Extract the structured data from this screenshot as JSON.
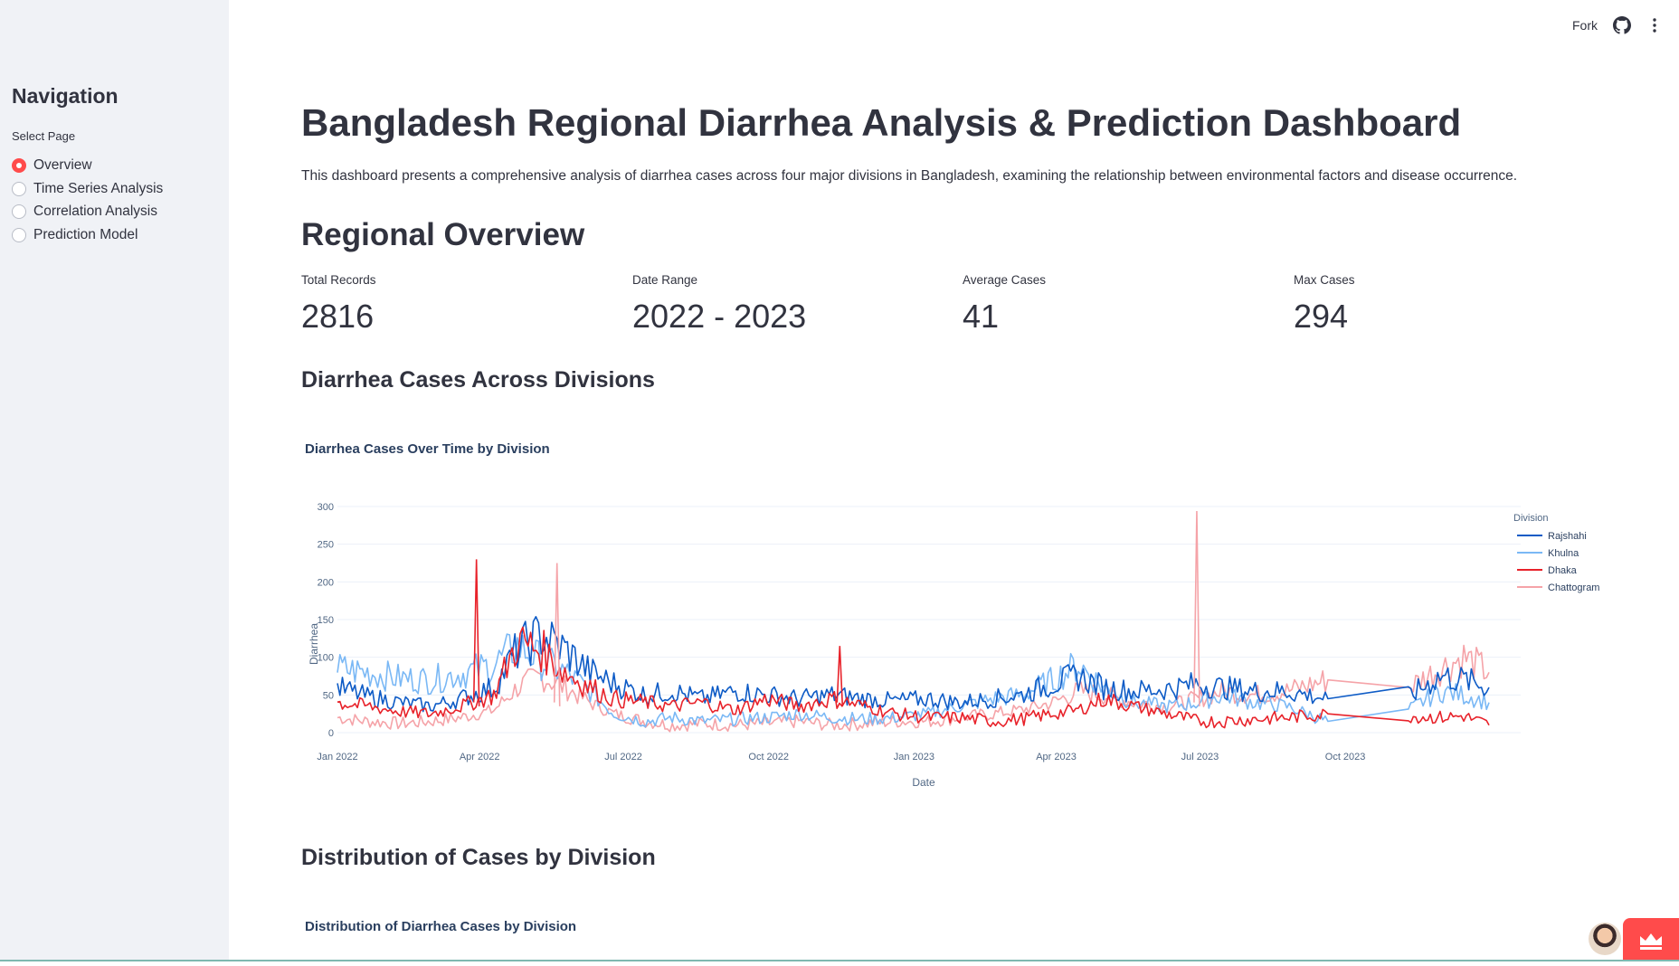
{
  "sidebar": {
    "title": "Navigation",
    "select_label": "Select Page",
    "items": [
      {
        "label": "Overview",
        "selected": true
      },
      {
        "label": "Time Series Analysis",
        "selected": false
      },
      {
        "label": "Correlation Analysis",
        "selected": false
      },
      {
        "label": "Prediction Model",
        "selected": false
      }
    ]
  },
  "topbar": {
    "fork_label": "Fork",
    "github_icon": "github-icon",
    "menu_icon": "kebab-menu-icon"
  },
  "main": {
    "title": "Bangladesh Regional Diarrhea Analysis & Prediction Dashboard",
    "description": "This dashboard presents a comprehensive analysis of diarrhea cases across four major divisions in Bangladesh, examining the relationship between environmental factors and disease occurrence.",
    "regional_overview": "Regional Overview",
    "metrics": [
      {
        "label": "Total Records",
        "value": "2816"
      },
      {
        "label": "Date Range",
        "value": "2022 - 2023"
      },
      {
        "label": "Average Cases",
        "value": "41"
      },
      {
        "label": "Max Cases",
        "value": "294"
      }
    ],
    "section_cases": "Diarrhea Cases Across Divisions",
    "section_distribution": "Distribution of Cases by Division",
    "distribution_chart_title": "Distribution of Diarrhea Cases by Division"
  },
  "chart_data": {
    "type": "line",
    "title": "Diarrhea Cases Over Time by Division",
    "xlabel": "Date",
    "ylabel": "Diarrhea",
    "ylim": [
      0,
      300
    ],
    "yticks": [
      0,
      50,
      100,
      150,
      200,
      250,
      300
    ],
    "xlim": [
      "2022-01-01",
      "2023-12-31"
    ],
    "xticks": [
      {
        "date": "2022-01-01",
        "label": "Jan 2022"
      },
      {
        "date": "2022-04-01",
        "label": "Apr 2022"
      },
      {
        "date": "2022-07-01",
        "label": "Jul 2022"
      },
      {
        "date": "2022-10-01",
        "label": "Oct 2022"
      },
      {
        "date": "2023-01-01",
        "label": "Jan 2023"
      },
      {
        "date": "2023-04-01",
        "label": "Apr 2023"
      },
      {
        "date": "2023-07-01",
        "label": "Jul 2023"
      },
      {
        "date": "2023-10-01",
        "label": "Oct 2023"
      }
    ],
    "grid": true,
    "legend_title": "Division",
    "legend_position": "right",
    "series": [
      {
        "name": "Rajshahi",
        "color": "#0d5bc6",
        "points": [
          [
            "2022-01-01",
            60
          ],
          [
            "2022-01-20",
            48
          ],
          [
            "2022-02-10",
            40
          ],
          [
            "2022-03-01",
            35
          ],
          [
            "2022-03-20",
            45
          ],
          [
            "2022-04-10",
            60
          ],
          [
            "2022-04-25",
            110
          ],
          [
            "2022-05-10",
            130
          ],
          [
            "2022-05-25",
            110
          ],
          [
            "2022-06-10",
            80
          ],
          [
            "2022-06-25",
            65
          ],
          [
            "2022-07-15",
            50
          ],
          [
            "2022-08-01",
            55
          ],
          [
            "2022-08-20",
            45
          ],
          [
            "2022-09-10",
            55
          ],
          [
            "2022-09-30",
            50
          ],
          [
            "2022-10-20",
            45
          ],
          [
            "2022-11-10",
            50
          ],
          [
            "2022-12-01",
            45
          ],
          [
            "2022-12-20",
            42
          ],
          [
            "2023-01-10",
            45
          ],
          [
            "2023-01-30",
            40
          ],
          [
            "2023-02-20",
            45
          ],
          [
            "2023-03-10",
            50
          ],
          [
            "2023-03-30",
            65
          ],
          [
            "2023-04-15",
            75
          ],
          [
            "2023-05-01",
            60
          ],
          [
            "2023-05-20",
            55
          ],
          [
            "2023-06-10",
            58
          ],
          [
            "2023-06-30",
            65
          ],
          [
            "2023-07-15",
            60
          ],
          [
            "2023-08-05",
            55
          ],
          [
            "2023-08-25",
            55
          ],
          [
            "2023-09-20",
            45
          ],
          [
            "2023-11-10",
            48
          ],
          [
            "2023-11-30",
            75
          ],
          [
            "2023-12-15",
            70
          ],
          [
            "2023-12-31",
            60
          ]
        ]
      },
      {
        "name": "Khulna",
        "color": "#7ab8f5",
        "points": [
          [
            "2022-01-01",
            85
          ],
          [
            "2022-01-20",
            80
          ],
          [
            "2022-02-10",
            72
          ],
          [
            "2022-03-01",
            70
          ],
          [
            "2022-03-20",
            78
          ],
          [
            "2022-04-10",
            90
          ],
          [
            "2022-04-25",
            115
          ],
          [
            "2022-05-10",
            95
          ],
          [
            "2022-05-25",
            80
          ],
          [
            "2022-06-10",
            55
          ],
          [
            "2022-06-25",
            25
          ],
          [
            "2022-07-15",
            15
          ],
          [
            "2022-08-01",
            20
          ],
          [
            "2022-08-20",
            15
          ],
          [
            "2022-09-10",
            18
          ],
          [
            "2022-09-30",
            20
          ],
          [
            "2022-10-20",
            25
          ],
          [
            "2022-11-10",
            20
          ],
          [
            "2022-12-01",
            18
          ],
          [
            "2022-12-20",
            20
          ],
          [
            "2023-01-10",
            25
          ],
          [
            "2023-01-30",
            35
          ],
          [
            "2023-02-20",
            45
          ],
          [
            "2023-03-10",
            50
          ],
          [
            "2023-03-30",
            70
          ],
          [
            "2023-04-15",
            90
          ],
          [
            "2023-05-01",
            60
          ],
          [
            "2023-05-20",
            40
          ],
          [
            "2023-06-10",
            35
          ],
          [
            "2023-06-30",
            40
          ],
          [
            "2023-07-15",
            50
          ],
          [
            "2023-08-05",
            40
          ],
          [
            "2023-08-25",
            35
          ],
          [
            "2023-09-20",
            15
          ],
          [
            "2023-11-10",
            30
          ],
          [
            "2023-11-30",
            55
          ],
          [
            "2023-12-15",
            50
          ],
          [
            "2023-12-31",
            40
          ]
        ]
      },
      {
        "name": "Dhaka",
        "color": "#e8222a",
        "points": [
          [
            "2022-01-01",
            40
          ],
          [
            "2022-01-20",
            35
          ],
          [
            "2022-02-10",
            28
          ],
          [
            "2022-03-01",
            25
          ],
          [
            "2022-03-20",
            35
          ],
          [
            "2022-04-10",
            50
          ],
          [
            "2022-04-25",
            120
          ],
          [
            "2022-05-10",
            110
          ],
          [
            "2022-05-25",
            80
          ],
          [
            "2022-06-10",
            60
          ],
          [
            "2022-06-25",
            45
          ],
          [
            "2022-07-15",
            40
          ],
          [
            "2022-08-01",
            35
          ],
          [
            "2022-08-20",
            40
          ],
          [
            "2022-09-10",
            30
          ],
          [
            "2022-09-30",
            45
          ],
          [
            "2022-10-20",
            35
          ],
          [
            "2022-11-10",
            45
          ],
          [
            "2022-12-01",
            35
          ],
          [
            "2022-12-20",
            25
          ],
          [
            "2023-01-10",
            20
          ],
          [
            "2023-01-30",
            20
          ],
          [
            "2023-02-20",
            15
          ],
          [
            "2023-03-10",
            18
          ],
          [
            "2023-03-30",
            25
          ],
          [
            "2023-04-15",
            30
          ],
          [
            "2023-05-01",
            45
          ],
          [
            "2023-05-20",
            35
          ],
          [
            "2023-06-10",
            25
          ],
          [
            "2023-06-30",
            15
          ],
          [
            "2023-07-15",
            15
          ],
          [
            "2023-08-05",
            18
          ],
          [
            "2023-08-25",
            20
          ],
          [
            "2023-09-20",
            25
          ],
          [
            "2023-11-10",
            22
          ],
          [
            "2023-11-30",
            20
          ],
          [
            "2023-12-15",
            22
          ],
          [
            "2023-12-31",
            10
          ]
        ]
      },
      {
        "name": "Chattogram",
        "color": "#f5a3a8",
        "points": [
          [
            "2022-01-01",
            20
          ],
          [
            "2022-01-20",
            15
          ],
          [
            "2022-02-10",
            12
          ],
          [
            "2022-03-01",
            15
          ],
          [
            "2022-03-20",
            20
          ],
          [
            "2022-04-10",
            30
          ],
          [
            "2022-04-25",
            60
          ],
          [
            "2022-05-10",
            75
          ],
          [
            "2022-05-25",
            60
          ],
          [
            "2022-06-10",
            40
          ],
          [
            "2022-06-25",
            25
          ],
          [
            "2022-07-15",
            15
          ],
          [
            "2022-08-01",
            10
          ],
          [
            "2022-08-20",
            12
          ],
          [
            "2022-09-10",
            10
          ],
          [
            "2022-09-30",
            12
          ],
          [
            "2022-10-20",
            15
          ],
          [
            "2022-11-10",
            10
          ],
          [
            "2022-12-01",
            12
          ],
          [
            "2022-12-20",
            15
          ],
          [
            "2023-01-10",
            15
          ],
          [
            "2023-01-30",
            20
          ],
          [
            "2023-02-20",
            25
          ],
          [
            "2023-03-10",
            30
          ],
          [
            "2023-03-30",
            40
          ],
          [
            "2023-04-15",
            55
          ],
          [
            "2023-05-01",
            50
          ],
          [
            "2023-05-20",
            40
          ],
          [
            "2023-06-10",
            35
          ],
          [
            "2023-06-30",
            45
          ],
          [
            "2023-07-15",
            55
          ],
          [
            "2023-08-05",
            50
          ],
          [
            "2023-08-25",
            55
          ],
          [
            "2023-09-20",
            70
          ],
          [
            "2023-11-10",
            60
          ],
          [
            "2023-11-30",
            85
          ],
          [
            "2023-12-15",
            100
          ],
          [
            "2023-12-31",
            80
          ]
        ]
      }
    ],
    "spikes": [
      {
        "series": "Dhaka",
        "date": "2022-03-30",
        "value": 230
      },
      {
        "series": "Chattogram",
        "date": "2022-05-20",
        "value": 225
      },
      {
        "series": "Dhaka",
        "date": "2022-11-15",
        "value": 115
      },
      {
        "series": "Chattogram",
        "date": "2023-06-29",
        "value": 294
      }
    ]
  }
}
